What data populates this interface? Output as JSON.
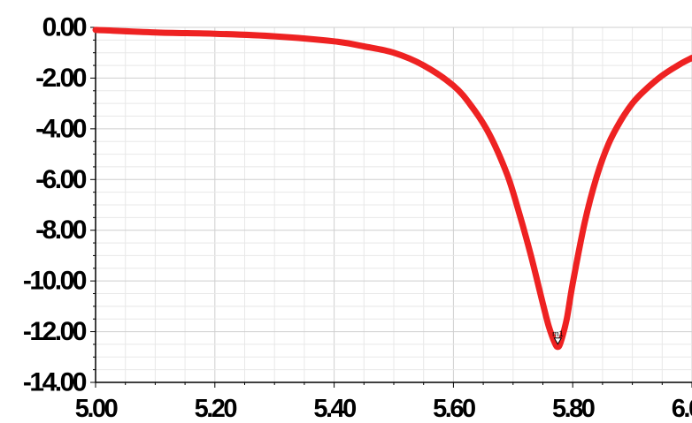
{
  "chart_data": {
    "type": "line",
    "title": "",
    "xlabel": "",
    "ylabel": "",
    "xlim": [
      5.0,
      6.0
    ],
    "ylim": [
      -14.0,
      0.0
    ],
    "x_ticks": [
      "5.00",
      "5.20",
      "5.40",
      "5.60",
      "5.80",
      "6.00"
    ],
    "y_ticks": [
      "0.00",
      "-2.00",
      "-4.00",
      "-6.00",
      "-8.00",
      "-10.00",
      "-12.00",
      "-14.00"
    ],
    "grid": true,
    "series_color": "#ee2222",
    "series": [
      {
        "x": [
          5.0,
          5.1,
          5.2,
          5.3,
          5.4,
          5.45,
          5.5,
          5.55,
          5.6,
          5.63,
          5.66,
          5.69,
          5.71,
          5.73,
          5.75,
          5.76,
          5.77,
          5.775,
          5.78,
          5.79,
          5.8,
          5.82,
          5.84,
          5.86,
          5.88,
          5.9,
          5.92,
          5.95,
          5.98,
          6.0
        ],
        "y": [
          -0.1,
          -0.2,
          -0.25,
          -0.35,
          -0.55,
          -0.75,
          -1.0,
          -1.5,
          -2.3,
          -3.1,
          -4.2,
          -5.8,
          -7.3,
          -9.0,
          -10.9,
          -11.8,
          -12.45,
          -12.6,
          -12.4,
          -11.5,
          -10.1,
          -7.7,
          -5.9,
          -4.6,
          -3.7,
          -3.0,
          -2.5,
          -1.9,
          -1.45,
          -1.2
        ]
      }
    ],
    "markers": [
      {
        "label": "m1",
        "x": 5.775,
        "y": -12.6
      }
    ]
  }
}
